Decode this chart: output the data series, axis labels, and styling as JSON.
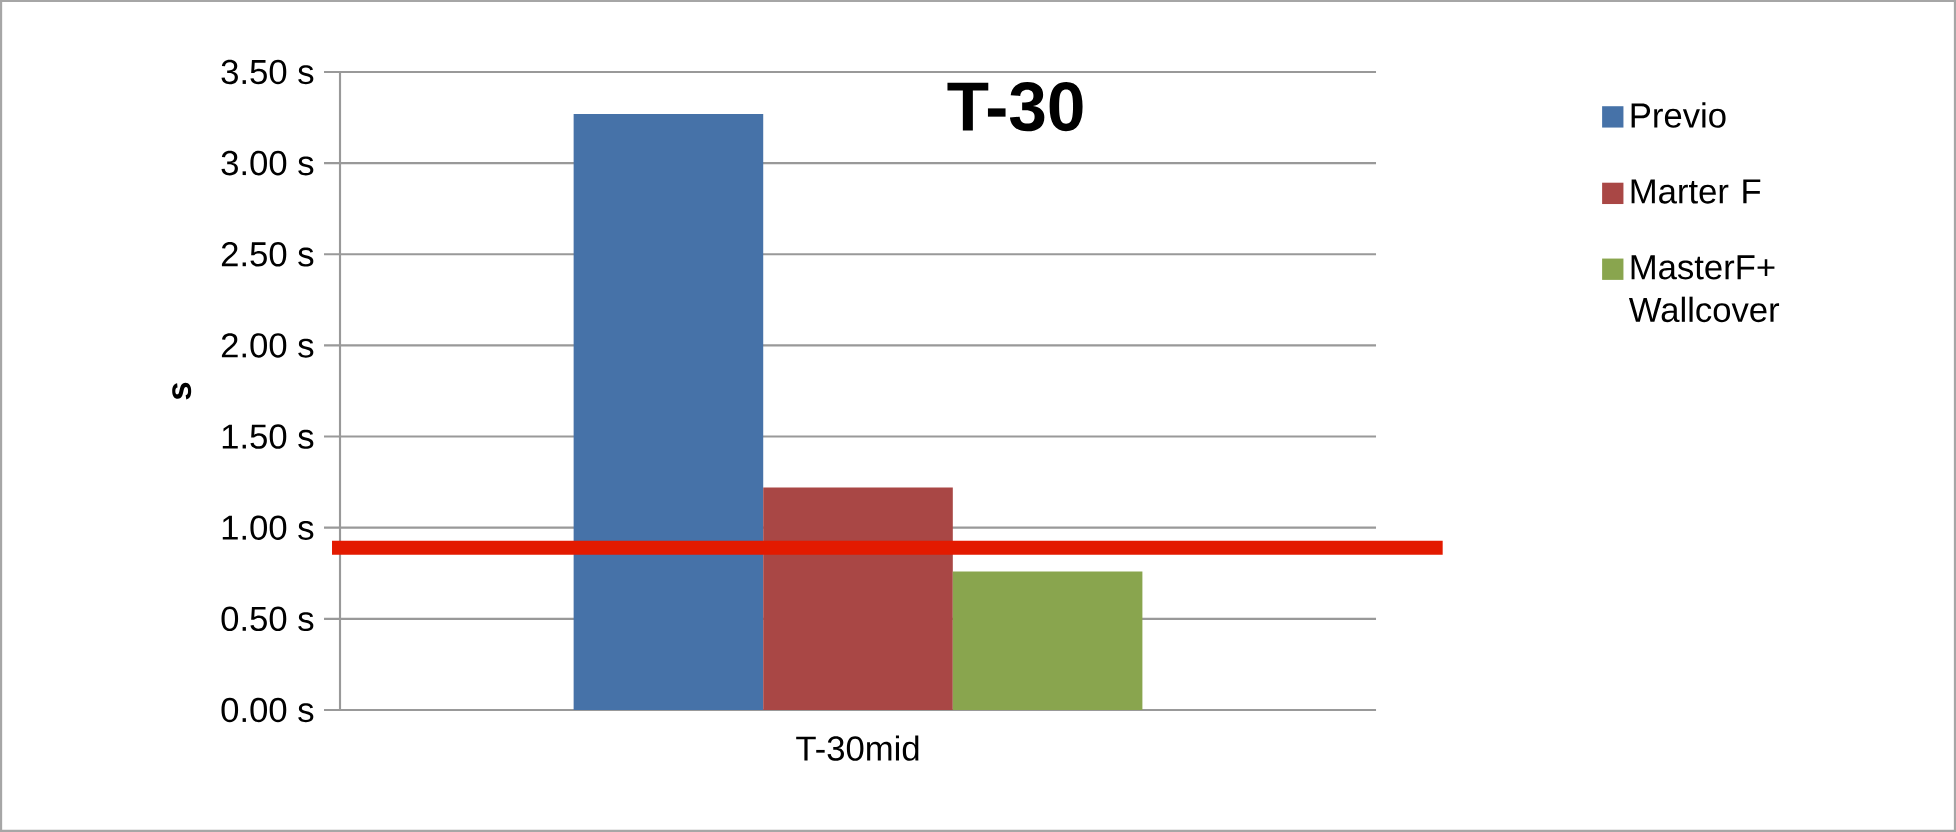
{
  "chart_data": {
    "type": "bar",
    "title": "T-30",
    "ylabel": "s",
    "categories": [
      "T-30mid"
    ],
    "series": [
      {
        "name": "Previo",
        "color": "#4672a8",
        "values": [
          3.27
        ]
      },
      {
        "name": "Marter F",
        "color": "#a94745",
        "values": [
          1.22
        ]
      },
      {
        "name": "MasterF+ Wallcover",
        "color": "#89a54e",
        "values": [
          0.76
        ]
      }
    ],
    "ylim": [
      0,
      3.5
    ],
    "yticks": [
      {
        "value": 0,
        "label": "0.00 s"
      },
      {
        "value": 0.5,
        "label": "0.50 s"
      },
      {
        "value": 1,
        "label": "1.00 s"
      },
      {
        "value": 1.5,
        "label": "1.50 s"
      },
      {
        "value": 2,
        "label": "2.00 s"
      },
      {
        "value": 2.5,
        "label": "2.50 s"
      },
      {
        "value": 3,
        "label": "3.00 s"
      },
      {
        "value": 3.5,
        "label": "3.50 s"
      }
    ],
    "grid": "y",
    "legend": "right",
    "ref_lines": [
      {
        "axis": "y",
        "value": 0.89,
        "color": "#e31a00"
      }
    ]
  }
}
